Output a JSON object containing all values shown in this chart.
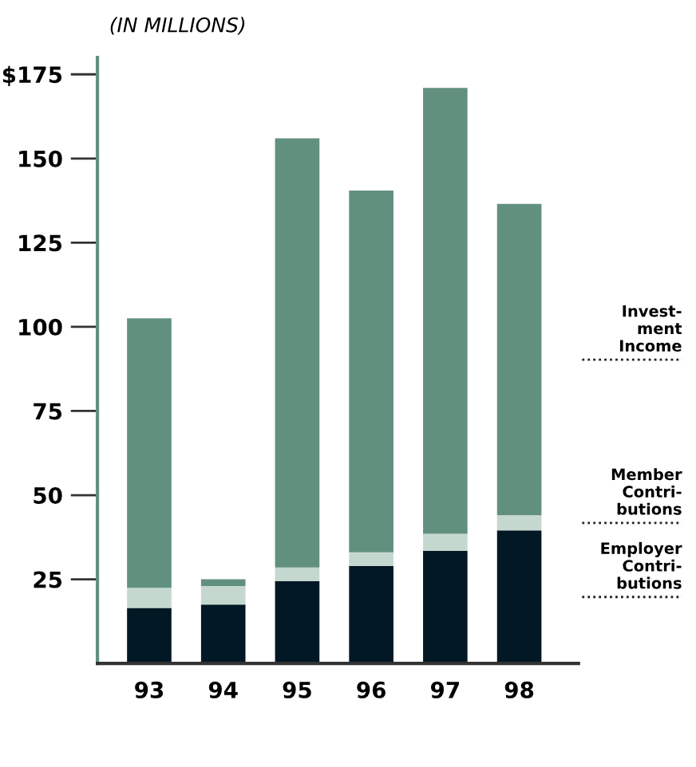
{
  "chart_data": {
    "type": "bar",
    "stacked": true,
    "title": "(IN MILLIONS)",
    "categories": [
      "93",
      "94",
      "95",
      "96",
      "97",
      "98"
    ],
    "series": [
      {
        "name": "Employer\nContri-\nbutions",
        "color": "#021824",
        "values": [
          16.5,
          17.5,
          24.5,
          29,
          33.5,
          39.5
        ]
      },
      {
        "name": "Member\nContri-\nbutions",
        "color": "#c5d8d0",
        "values": [
          6,
          5.5,
          4,
          4,
          5,
          4.5
        ]
      },
      {
        "name": "Invest-\nment\nIncome",
        "color": "#62907f",
        "values": [
          80,
          2,
          127.5,
          107.5,
          132.5,
          92.5
        ]
      }
    ],
    "ylim": [
      0,
      180
    ],
    "yticks": [
      25,
      50,
      75,
      100,
      125,
      150,
      {
        "value": 175,
        "label": "$175"
      }
    ],
    "legend": "right",
    "grid": false
  }
}
